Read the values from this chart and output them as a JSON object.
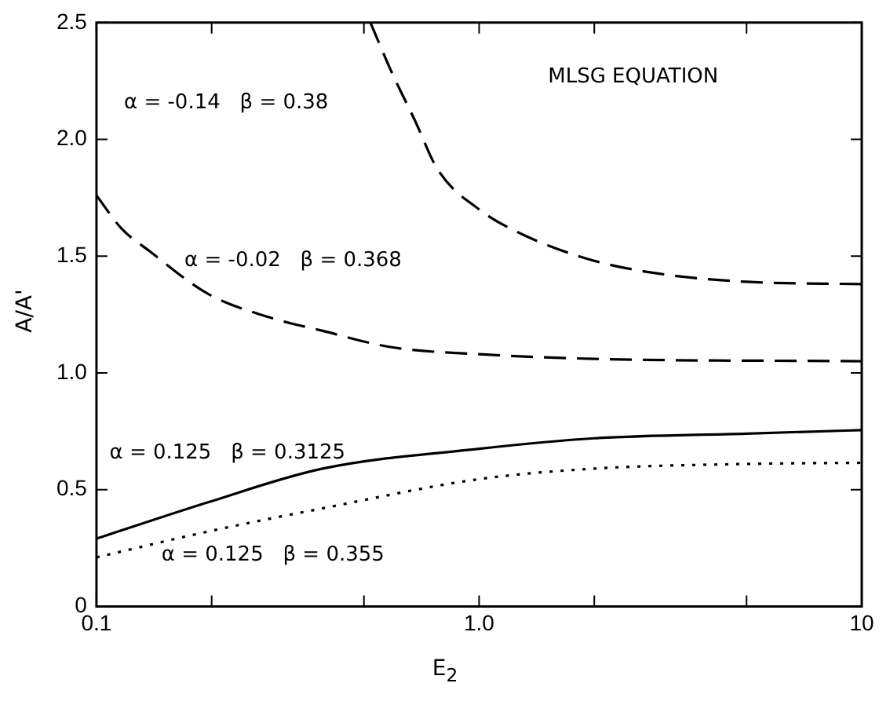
{
  "chart_data": {
    "type": "line",
    "xlabel": "E$_{2}$",
    "ylabel": "A/A'",
    "log": "x",
    "xlim": [
      0.1,
      10
    ],
    "xticks": [
      {
        "value": 0.1,
        "label": "0.1"
      },
      {
        "value": 0.2,
        "label": null
      },
      {
        "value": 0.5,
        "label": null
      },
      {
        "value": 1,
        "label": "1.0"
      },
      {
        "value": 2,
        "label": null
      },
      {
        "value": 5,
        "label": null
      },
      {
        "value": 10,
        "label": "10"
      }
    ],
    "ylim": [
      0,
      2.5
    ],
    "yticks": [
      {
        "value": 0,
        "label": "0"
      },
      {
        "value": 0.5,
        "label": "0.5"
      },
      {
        "value": 1,
        "label": "1.0"
      },
      {
        "value": 1.5,
        "label": "1.5"
      },
      {
        "value": 2,
        "label": "2.0"
      },
      {
        "value": 2.5,
        "label": "2.5"
      }
    ],
    "grid": false,
    "legend": false,
    "marker": "none",
    "series": [
      {
        "color": "#000000",
        "line_style": "dashed",
        "x": [
          0.52,
          0.59,
          0.68,
          0.78,
          1.0,
          1.31,
          2.0,
          3.1,
          5.0,
          10
        ],
        "values": [
          2.5,
          2.29,
          2.08,
          1.87,
          1.7,
          1.59,
          1.48,
          1.42,
          1.39,
          1.38
        ]
      },
      {
        "color": "#000000",
        "line_style": "dashed",
        "x": [
          0.1,
          0.116,
          0.138,
          0.195,
          0.28,
          0.39,
          0.59,
          1.0,
          2.0,
          10
        ],
        "values": [
          1.76,
          1.62,
          1.52,
          1.34,
          1.24,
          1.18,
          1.11,
          1.08,
          1.06,
          1.05
        ]
      },
      {
        "color": "#000000",
        "line_style": "solid",
        "x": [
          0.1,
          0.195,
          0.39,
          1.0,
          2.0,
          5.0,
          10
        ],
        "values": [
          0.29,
          0.445,
          0.59,
          0.675,
          0.72,
          0.74,
          0.755
        ]
      },
      {
        "color": "#000000",
        "line_style": "dotted",
        "x": [
          0.1,
          0.195,
          0.39,
          1.0,
          2.0,
          5.0,
          10
        ],
        "values": [
          0.21,
          0.32,
          0.42,
          0.545,
          0.59,
          0.61,
          0.615
        ]
      }
    ],
    "annotations": [
      "MLSG EQUATION",
      "α = -0.14   β = 0.38",
      "α = -0.02   β = 0.368",
      "α = 0.125   β = 0.3125",
      "α = 0.125   β = 0.355"
    ]
  }
}
